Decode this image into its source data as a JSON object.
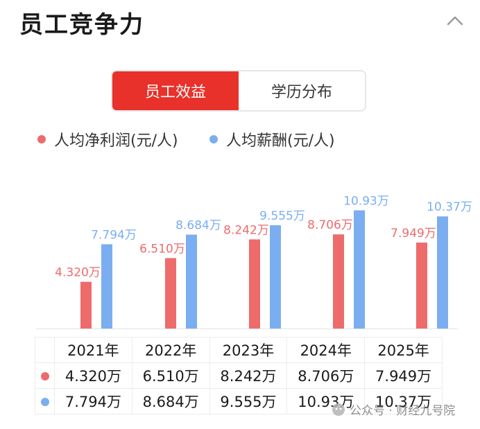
{
  "header": {
    "title": "员工竞争力"
  },
  "tabs": [
    {
      "label": "员工效益",
      "active": true
    },
    {
      "label": "学历分布",
      "active": false
    }
  ],
  "colors": {
    "accent": "#e8312a",
    "series_profit": "#ee6b6b",
    "series_salary": "#7aaef0"
  },
  "chart_data": {
    "type": "bar",
    "categories": [
      "2021年",
      "2022年",
      "2023年",
      "2024年",
      "2025年"
    ],
    "series": [
      {
        "name": "人均净利润(元/人)",
        "values": [
          4.32,
          6.51,
          8.242,
          8.706,
          7.949
        ],
        "labels": [
          "4.320万",
          "6.510万",
          "8.242万",
          "8.706万",
          "7.949万"
        ]
      },
      {
        "name": "人均薪酬(元/人)",
        "values": [
          7.794,
          8.684,
          9.555,
          10.93,
          10.37
        ],
        "labels": [
          "7.794万",
          "8.684万",
          "9.555万",
          "10.93万",
          "10.37万"
        ]
      }
    ],
    "legend_position": "top-left",
    "grid": false
  },
  "watermark": {
    "text": "公众号 · 财经九号院"
  }
}
